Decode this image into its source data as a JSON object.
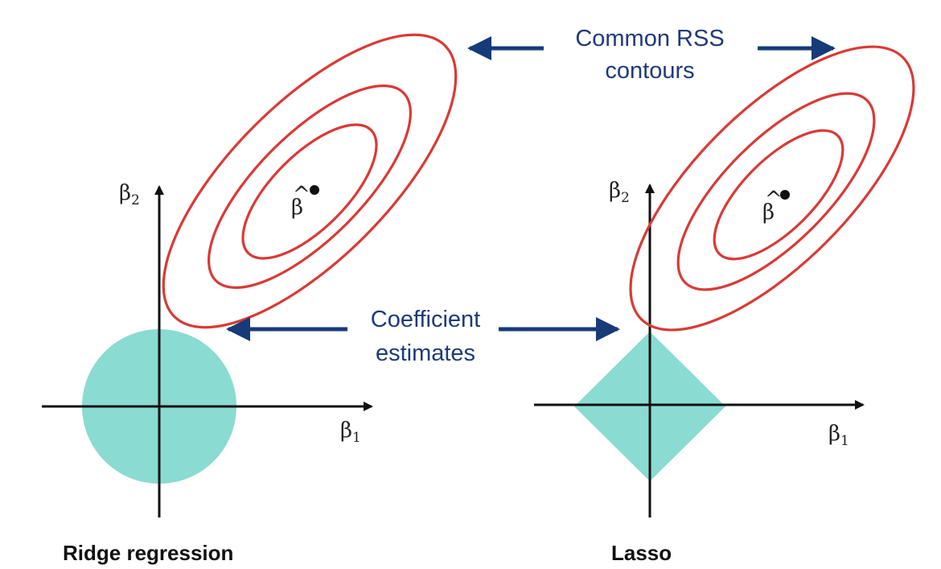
{
  "annotations": {
    "rss_line1": "Common RSS",
    "rss_line2": "contours",
    "coef_line1": "Coefficient",
    "coef_line2": "estimates"
  },
  "panels": {
    "ridge": {
      "caption": "Ridge regression",
      "x_axis_symbol": "β",
      "x_axis_subscript": "1",
      "y_axis_symbol": "β",
      "y_axis_subscript": "2",
      "estimate_symbol": "β",
      "estimate_hat": "^",
      "constraint_shape": "circle"
    },
    "lasso": {
      "caption": "Lasso",
      "x_axis_symbol": "β",
      "x_axis_subscript": "1",
      "y_axis_symbol": "β",
      "y_axis_subscript": "2",
      "estimate_symbol": "β",
      "estimate_hat": "^",
      "constraint_shape": "diamond"
    }
  },
  "colors": {
    "constraint_fill": "#8adbd2",
    "contour": "#d93a36",
    "annotation": "#1e3a7a",
    "arrow": "#173a78",
    "axis": "#111111"
  }
}
